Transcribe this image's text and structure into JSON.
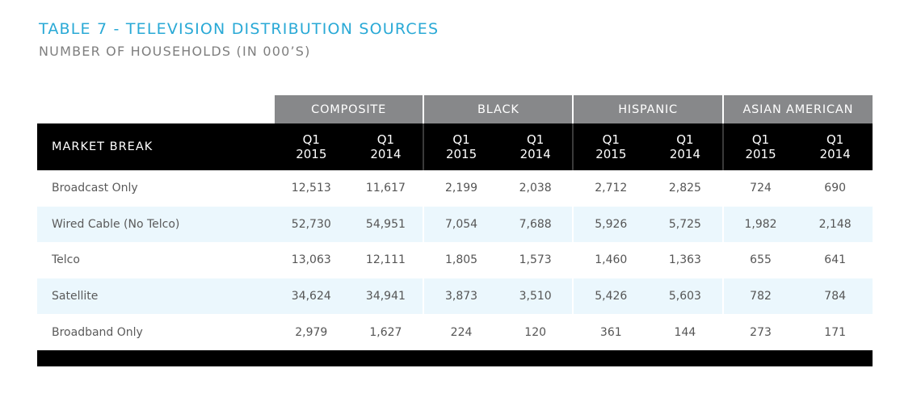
{
  "title": "TABLE 7 - TELEVISION DISTRIBUTION SOURCES",
  "subtitle": "NUMBER OF HOUSEHOLDS (IN 000’S)",
  "table": {
    "row_header": "MARKET BREAK",
    "groups": [
      "COMPOSITE",
      "BLACK",
      "HISPANIC",
      "ASIAN AMERICAN"
    ],
    "periods": [
      {
        "q": "Q1",
        "y": "2015"
      },
      {
        "q": "Q1",
        "y": "2014"
      }
    ],
    "rows": [
      {
        "label": "Broadcast Only",
        "values": [
          "12,513",
          "11,617",
          "2,199",
          "2,038",
          "2,712",
          "2,825",
          "724",
          "690"
        ]
      },
      {
        "label": "Wired Cable (No Telco)",
        "values": [
          "52,730",
          "54,951",
          "7,054",
          "7,688",
          "5,926",
          "5,725",
          "1,982",
          "2,148"
        ]
      },
      {
        "label": "Telco",
        "values": [
          "13,063",
          "12,111",
          "1,805",
          "1,573",
          "1,460",
          "1,363",
          "655",
          "641"
        ]
      },
      {
        "label": "Satellite",
        "values": [
          "34,624",
          "34,941",
          "3,873",
          "3,510",
          "5,426",
          "5,603",
          "782",
          "784"
        ]
      },
      {
        "label": "Broadband Only",
        "values": [
          "2,979",
          "1,627",
          "224",
          "120",
          "361",
          "144",
          "273",
          "171"
        ]
      }
    ]
  },
  "colors": {
    "title": "#29a9d6",
    "subtitle": "#7f7f7f",
    "group_header_bg": "#87888a",
    "header_bg": "#000000",
    "alt_row_bg": "#ebf7fd"
  }
}
